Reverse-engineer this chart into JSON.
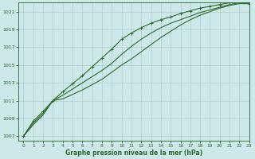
{
  "title": "Graphe pression niveau de la mer (hPa)",
  "bg_color": "#cce8e8",
  "grid_color": "#b0cccc",
  "line_color": "#2d6a2d",
  "xlim": [
    -0.5,
    23
  ],
  "ylim": [
    1006.5,
    1022.0
  ],
  "yticks": [
    1007,
    1009,
    1011,
    1013,
    1015,
    1017,
    1019,
    1021
  ],
  "xticks": [
    0,
    1,
    2,
    3,
    4,
    5,
    6,
    7,
    8,
    9,
    10,
    11,
    12,
    13,
    14,
    15,
    16,
    17,
    18,
    19,
    20,
    21,
    22,
    23
  ],
  "series": [
    {
      "x": [
        0,
        1,
        2,
        3,
        4,
        5,
        6,
        7,
        8,
        9,
        10,
        11,
        12,
        13,
        14,
        15,
        16,
        17,
        18,
        19,
        20,
        21,
        22,
        23
      ],
      "y": [
        1007.0,
        1008.7,
        1009.8,
        1011.0,
        1012.0,
        1012.9,
        1013.8,
        1014.8,
        1015.8,
        1016.8,
        1017.9,
        1018.6,
        1019.2,
        1019.7,
        1020.1,
        1020.4,
        1020.8,
        1021.1,
        1021.4,
        1021.6,
        1021.8,
        1022.0,
        1022.1,
        1021.9
      ],
      "marker": true
    },
    {
      "x": [
        0,
        1,
        2,
        3,
        4,
        5,
        6,
        7,
        8,
        9,
        10,
        11,
        12,
        13,
        14,
        15,
        16,
        17,
        18,
        19,
        20,
        21,
        22,
        23
      ],
      "y": [
        1007.0,
        1008.5,
        1009.6,
        1011.0,
        1011.6,
        1012.3,
        1013.0,
        1013.7,
        1014.4,
        1015.2,
        1016.2,
        1017.1,
        1017.9,
        1018.6,
        1019.2,
        1019.7,
        1020.1,
        1020.5,
        1020.9,
        1021.2,
        1021.5,
        1021.8,
        1022.0,
        1021.9
      ],
      "marker": false
    },
    {
      "x": [
        0,
        1,
        2,
        3,
        4,
        5,
        6,
        7,
        8,
        9,
        10,
        11,
        12,
        13,
        14,
        15,
        16,
        17,
        18,
        19,
        20,
        21,
        22,
        23
      ],
      "y": [
        1007.0,
        1008.3,
        1009.4,
        1011.0,
        1011.2,
        1011.7,
        1012.2,
        1012.8,
        1013.4,
        1014.2,
        1015.0,
        1015.7,
        1016.5,
        1017.3,
        1018.1,
        1018.8,
        1019.5,
        1020.1,
        1020.6,
        1021.0,
        1021.4,
        1021.7,
        1021.9,
        1021.9
      ],
      "marker": false
    }
  ]
}
